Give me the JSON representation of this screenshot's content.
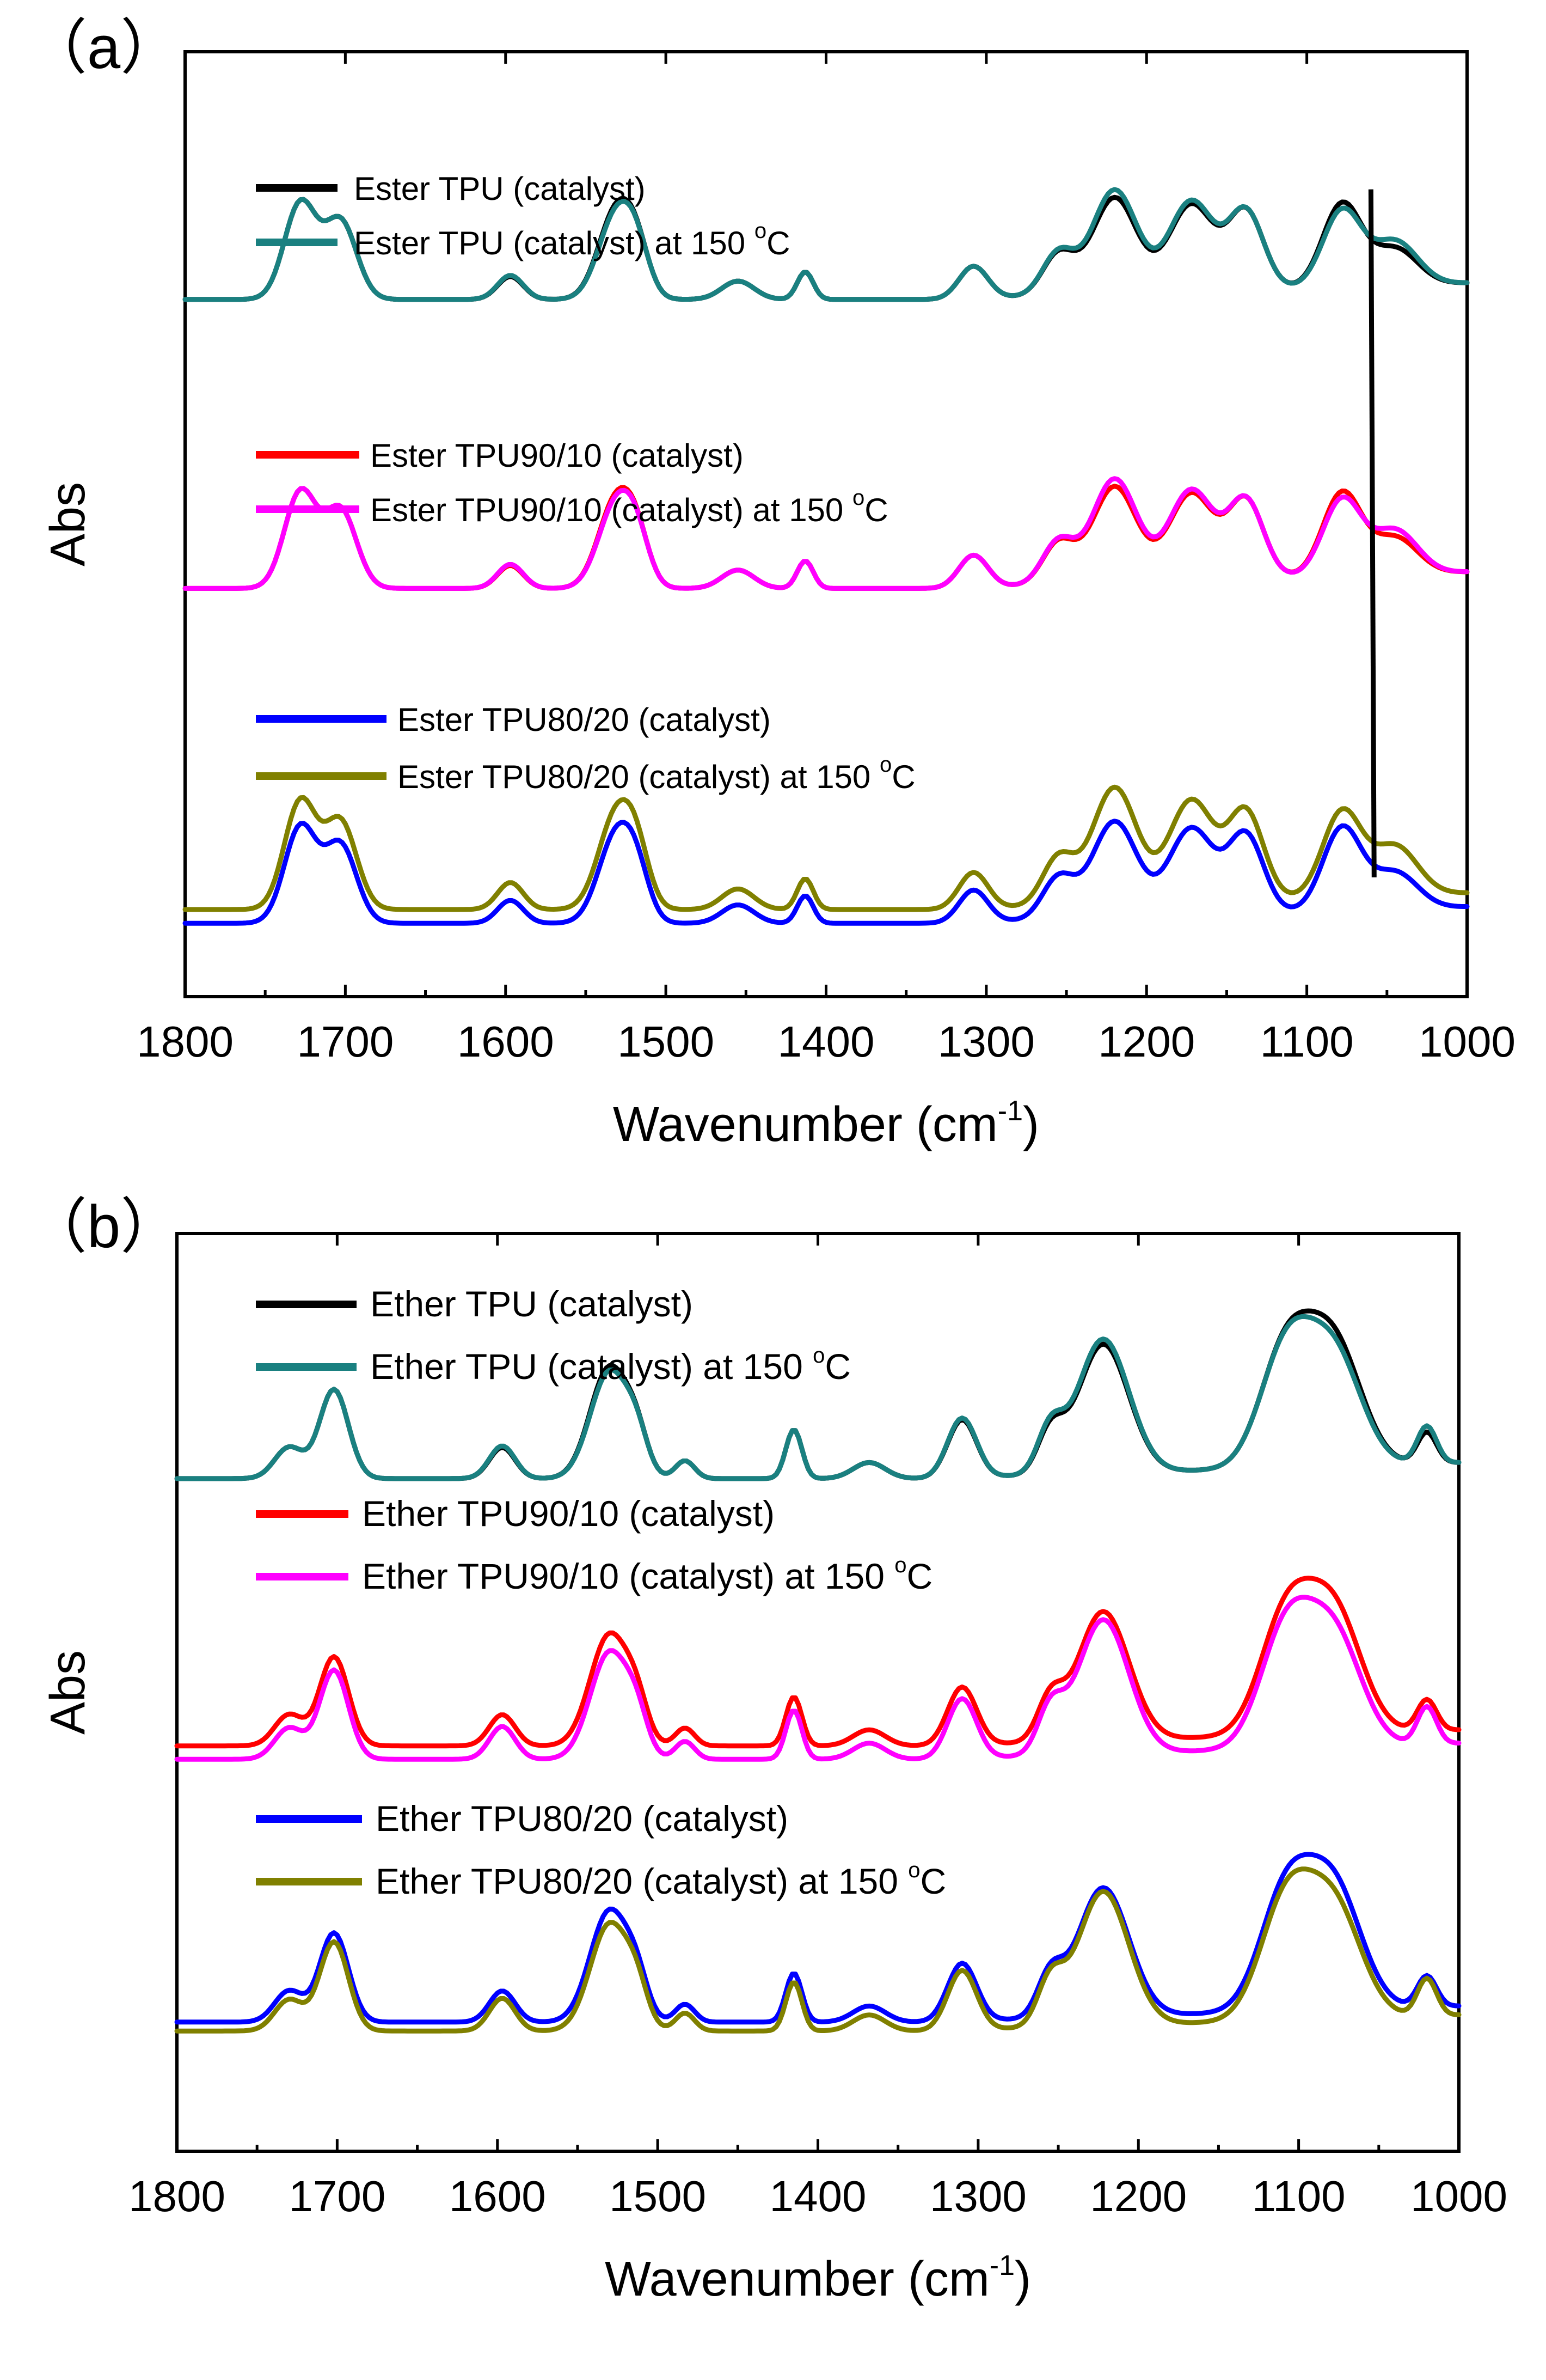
{
  "chart_data": [
    {
      "type": "line",
      "panel_label": "（a）",
      "xlabel_main": "Wavenumber (cm",
      "xlabel_sup": "-1",
      "xlabel_close": ")",
      "ylabel": "Abs",
      "xlim": [
        1800,
        1000
      ],
      "x_ticks": [
        "1800",
        "1700",
        "1600",
        "1500",
        "1400",
        "1300",
        "1200",
        "1100",
        "1000"
      ],
      "ylim": [
        0,
        10.3
      ],
      "grid": false,
      "marker_line": {
        "x": [
          1060,
          1058
        ],
        "y": [
          8.8,
          1.3
        ],
        "color": "#000000"
      },
      "series": [
        {
          "name": "Ester TPU (catalyst)",
          "legend_prefix": "Ester TPU (catalyst)",
          "legend_suffix": "",
          "color": "#000000",
          "baseline": 7.6,
          "group": 0,
          "variant": "a1"
        },
        {
          "name": "Ester TPU (catalyst) at 150 °C",
          "legend_prefix": "Ester TPU (catalyst) at 150 ",
          "legend_suffix": "C",
          "color": "#1a8080",
          "baseline": 7.6,
          "group": 0,
          "variant": "a2"
        },
        {
          "name": "Ester TPU90/10 (catalyst)",
          "legend_prefix": "Ester TPU90/10 (catalyst)",
          "legend_suffix": "",
          "color": "#ff0000",
          "baseline": 4.45,
          "group": 1,
          "variant": "a1"
        },
        {
          "name": "Ester TPU90/10 (catalyst) at 150 °C",
          "legend_prefix": "Ester TPU90/10 (catalyst) at 150 ",
          "legend_suffix": "C",
          "color": "#ff00ff",
          "baseline": 4.45,
          "group": 1,
          "variant": "a2"
        },
        {
          "name": "Ester TPU80/20 (catalyst)",
          "legend_prefix": "Ester TPU80/20 (catalyst)",
          "legend_suffix": "",
          "color": "#0000ff",
          "baseline": 0.8,
          "group": 2,
          "variant": "a1"
        },
        {
          "name": "Ester TPU80/20 (catalyst) at 150 °C",
          "legend_prefix": "Ester TPU80/20 (catalyst) at 150 ",
          "legend_suffix": "C",
          "color": "#808000",
          "baseline": 0.95,
          "group": 2,
          "variant": "a2"
        }
      ],
      "peaks_ester": [
        [
          1728,
          1.05,
          10
        ],
        [
          1703,
          0.85,
          10
        ],
        [
          1597,
          0.25,
          8
        ],
        [
          1531,
          0.95,
          11
        ],
        [
          1518,
          0.4,
          8
        ],
        [
          1455,
          0.2,
          10
        ],
        [
          1413,
          0.3,
          5
        ],
        [
          1308,
          0.35,
          9
        ],
        [
          1255,
          0.45,
          10
        ],
        [
          1220,
          1.05,
          14
        ],
        [
          1172,
          0.95,
          14
        ],
        [
          1138,
          0.85,
          11
        ],
        [
          1078,
          0.9,
          12
        ],
        [
          1045,
          0.4,
          14
        ]
      ]
    },
    {
      "type": "line",
      "panel_label": "（b）",
      "xlabel_main": "Wavenumber (cm",
      "xlabel_sup": "-1",
      "xlabel_close": ")",
      "ylabel": "Abs",
      "xlim": [
        1800,
        1000
      ],
      "x_ticks": [
        "1800",
        "1700",
        "1600",
        "1500",
        "1400",
        "1300",
        "1200",
        "1100",
        "1000"
      ],
      "ylim": [
        0,
        10.3
      ],
      "grid": false,
      "series": [
        {
          "name": "Ether TPU (catalyst)",
          "legend_prefix": "Ether TPU (catalyst)",
          "legend_suffix": "",
          "color": "#000000",
          "baseline": 7.55,
          "group": 0,
          "variant": "b1"
        },
        {
          "name": "Ether TPU (catalyst) at 150 °C",
          "legend_prefix": "Ether TPU (catalyst) at 150 ",
          "legend_suffix": "C",
          "color": "#1a8080",
          "baseline": 7.55,
          "group": 0,
          "variant": "b2"
        },
        {
          "name": "Ether TPU90/10 (catalyst)",
          "legend_prefix": "Ether TPU90/10 (catalyst)",
          "legend_suffix": "",
          "color": "#ff0000",
          "baseline": 4.55,
          "group": 1,
          "variant": "b1"
        },
        {
          "name": "Ether TPU90/10 (catalyst) at 150 °C",
          "legend_prefix": "Ether TPU90/10 (catalyst) at 150 ",
          "legend_suffix": "C",
          "color": "#ff00ff",
          "baseline": 4.4,
          "group": 1,
          "variant": "b2"
        },
        {
          "name": "Ether TPU80/20 (catalyst)",
          "legend_prefix": "Ether TPU80/20 (catalyst)",
          "legend_suffix": "",
          "color": "#0000ff",
          "baseline": 1.45,
          "group": 2,
          "variant": "b1"
        },
        {
          "name": "Ether TPU80/20 (catalyst) at 150 °C",
          "legend_prefix": "Ether TPU80/20 (catalyst) at 150 ",
          "legend_suffix": "C",
          "color": "#808000",
          "baseline": 1.35,
          "group": 2,
          "variant": "b2"
        }
      ],
      "peaks_ether": [
        [
          1730,
          0.35,
          9
        ],
        [
          1702,
          1.0,
          9
        ],
        [
          1597,
          0.35,
          8
        ],
        [
          1530,
          1.25,
          12
        ],
        [
          1513,
          0.35,
          7
        ],
        [
          1483,
          0.2,
          6
        ],
        [
          1415,
          0.55,
          5
        ],
        [
          1368,
          0.18,
          10
        ],
        [
          1310,
          0.65,
          9
        ],
        [
          1255,
          0.45,
          8
        ],
        [
          1222,
          1.45,
          16
        ],
        [
          1108,
          1.3,
          16
        ],
        [
          1078,
          1.35,
          17
        ],
        [
          1020,
          0.35,
          6
        ]
      ]
    }
  ],
  "legend_degree_symbol": "o"
}
